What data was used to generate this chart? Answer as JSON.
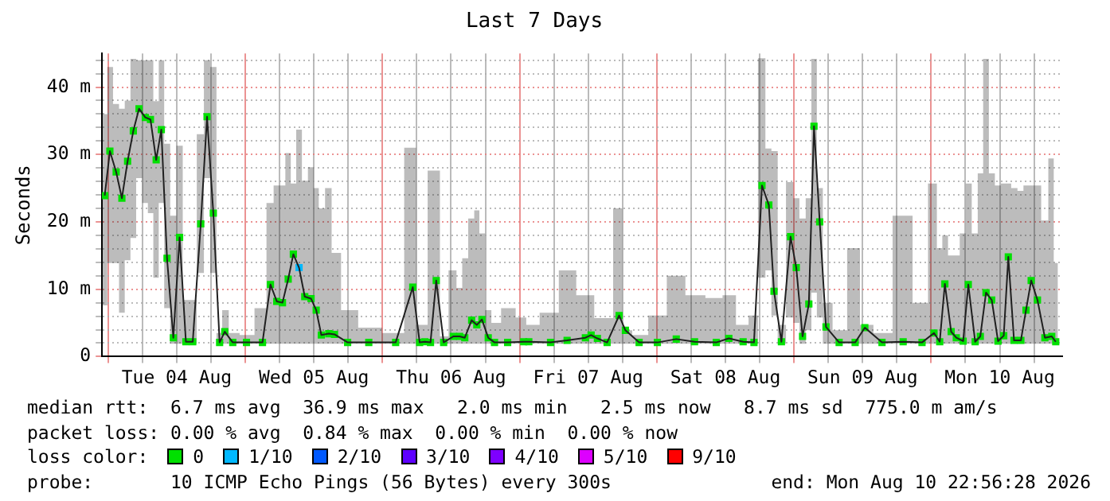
{
  "chart_data": {
    "type": "line",
    "title": "Last 7 Days",
    "ylabel": "Seconds",
    "xlim": [
      "2026-08-03T22:56",
      "2026-08-10T22:56"
    ],
    "xticks": [
      {
        "value": "2026-08-04T00:00",
        "label": null
      },
      {
        "value": "2026-08-04T06:00",
        "label": null
      },
      {
        "value": "2026-08-04T12:00",
        "label": "Tue 04 Aug"
      },
      {
        "value": "2026-08-04T18:00",
        "label": null
      },
      {
        "value": "2026-08-05T00:00",
        "label": null
      },
      {
        "value": "2026-08-05T06:00",
        "label": null
      },
      {
        "value": "2026-08-05T12:00",
        "label": "Wed 05 Aug"
      },
      {
        "value": "2026-08-05T18:00",
        "label": null
      },
      {
        "value": "2026-08-06T00:00",
        "label": null
      },
      {
        "value": "2026-08-06T06:00",
        "label": null
      },
      {
        "value": "2026-08-06T12:00",
        "label": "Thu 06 Aug"
      },
      {
        "value": "2026-08-06T18:00",
        "label": null
      },
      {
        "value": "2026-08-07T00:00",
        "label": null
      },
      {
        "value": "2026-08-07T06:00",
        "label": null
      },
      {
        "value": "2026-08-07T12:00",
        "label": "Fri 07 Aug"
      },
      {
        "value": "2026-08-07T18:00",
        "label": null
      },
      {
        "value": "2026-08-08T00:00",
        "label": null
      },
      {
        "value": "2026-08-08T06:00",
        "label": null
      },
      {
        "value": "2026-08-08T12:00",
        "label": "Sat 08 Aug"
      },
      {
        "value": "2026-08-08T18:00",
        "label": null
      },
      {
        "value": "2026-08-09T00:00",
        "label": null
      },
      {
        "value": "2026-08-09T06:00",
        "label": null
      },
      {
        "value": "2026-08-09T12:00",
        "label": "Sun 09 Aug"
      },
      {
        "value": "2026-08-09T18:00",
        "label": null
      },
      {
        "value": "2026-08-10T00:00",
        "label": null
      },
      {
        "value": "2026-08-10T06:00",
        "label": null
      },
      {
        "value": "2026-08-10T12:00",
        "label": "Mon 10 Aug"
      },
      {
        "value": "2026-08-10T18:00",
        "label": null
      }
    ],
    "ylim": [
      0,
      45
    ],
    "yticks": [
      {
        "value": 0,
        "label": "0"
      },
      {
        "value": 2,
        "label": null
      },
      {
        "value": 4,
        "label": null
      },
      {
        "value": 6,
        "label": null
      },
      {
        "value": 8,
        "label": null
      },
      {
        "value": 10,
        "label": "10 m"
      },
      {
        "value": 12,
        "label": null
      },
      {
        "value": 14,
        "label": null
      },
      {
        "value": 16,
        "label": null
      },
      {
        "value": 18,
        "label": null
      },
      {
        "value": 20,
        "label": "20 m"
      },
      {
        "value": 22,
        "label": null
      },
      {
        "value": 24,
        "label": null
      },
      {
        "value": 26,
        "label": null
      },
      {
        "value": 28,
        "label": null
      },
      {
        "value": 30,
        "label": "30 m"
      },
      {
        "value": 32,
        "label": null
      },
      {
        "value": 34,
        "label": null
      },
      {
        "value": 36,
        "label": null
      },
      {
        "value": 38,
        "label": null
      },
      {
        "value": 40,
        "label": "40 m"
      },
      {
        "value": 42,
        "label": null
      },
      {
        "value": 44,
        "label": null
      }
    ],
    "grid": true,
    "legend": "bottom",
    "legend_title": "loss color:",
    "x": [
      "2026-08-03T23:24",
      "2026-08-04T00:18",
      "2026-08-04T01:24",
      "2026-08-04T02:24",
      "2026-08-04T03:24",
      "2026-08-04T04:24",
      "2026-08-04T05:24",
      "2026-08-04T06:30",
      "2026-08-04T07:24",
      "2026-08-04T08:24",
      "2026-08-04T09:18",
      "2026-08-04T10:18",
      "2026-08-04T11:24",
      "2026-08-04T12:30",
      "2026-08-04T13:36",
      "2026-08-04T14:48",
      "2026-08-04T16:12",
      "2026-08-04T17:18",
      "2026-08-04T18:24",
      "2026-08-04T19:30",
      "2026-08-04T20:24",
      "2026-08-04T21:48",
      "2026-08-05T00:12",
      "2026-08-05T03:00",
      "2026-08-05T04:24",
      "2026-08-05T05:30",
      "2026-08-05T06:30",
      "2026-08-05T07:30",
      "2026-08-05T08:24",
      "2026-08-05T09:24",
      "2026-08-05T10:24",
      "2026-08-05T11:30",
      "2026-08-05T12:24",
      "2026-08-05T13:18",
      "2026-08-05T14:36",
      "2026-08-05T15:36",
      "2026-08-05T17:54",
      "2026-08-05T21:36",
      "2026-08-06T02:18",
      "2026-08-06T05:18",
      "2026-08-06T06:30",
      "2026-08-06T07:24",
      "2026-08-06T08:24",
      "2026-08-06T09:24",
      "2026-08-06T10:42",
      "2026-08-06T12:24",
      "2026-08-06T13:30",
      "2026-08-06T14:24",
      "2026-08-06T15:36",
      "2026-08-06T16:30",
      "2026-08-06T17:24",
      "2026-08-06T18:30",
      "2026-08-06T19:36",
      "2026-08-06T21:54",
      "2026-08-07T00:42",
      "2026-08-07T01:36",
      "2026-08-07T05:24",
      "2026-08-07T08:18",
      "2026-08-07T11:30",
      "2026-08-07T12:30",
      "2026-08-07T13:36",
      "2026-08-07T15:18",
      "2026-08-07T17:24",
      "2026-08-07T18:30",
      "2026-08-07T20:54",
      "2026-08-08T00:06",
      "2026-08-08T03:24",
      "2026-08-08T06:36",
      "2026-08-08T10:24",
      "2026-08-08T12:36",
      "2026-08-08T15:06",
      "2026-08-08T17:00",
      "2026-08-08T18:24",
      "2026-08-08T19:36",
      "2026-08-08T20:30",
      "2026-08-08T21:48",
      "2026-08-08T23:24",
      "2026-08-09T00:24",
      "2026-08-09T01:30",
      "2026-08-09T02:36",
      "2026-08-09T03:30",
      "2026-08-09T04:30",
      "2026-08-09T05:36",
      "2026-08-09T07:54",
      "2026-08-09T10:42",
      "2026-08-09T12:24",
      "2026-08-09T15:24",
      "2026-08-09T19:06",
      "2026-08-09T22:24",
      "2026-08-10T00:30",
      "2026-08-10T01:30",
      "2026-08-10T02:24",
      "2026-08-10T03:30",
      "2026-08-10T04:24",
      "2026-08-10T05:36",
      "2026-08-10T06:30",
      "2026-08-10T07:42",
      "2026-08-10T08:36",
      "2026-08-10T09:36",
      "2026-08-10T10:36",
      "2026-08-10T11:42",
      "2026-08-10T12:42",
      "2026-08-10T13:30",
      "2026-08-10T14:30",
      "2026-08-10T15:42",
      "2026-08-10T16:36",
      "2026-08-10T17:30",
      "2026-08-10T18:36",
      "2026-08-10T19:54",
      "2026-08-10T21:06",
      "2026-08-10T21:48"
    ],
    "series": [
      {
        "color": "#202020",
        "values": [
          23.9,
          30.5,
          27.4,
          23.5,
          29,
          33.5,
          36.8,
          35.5,
          35.2,
          29.2,
          33.7,
          14.6,
          2.8,
          17.7,
          2.2,
          2.2,
          19.7,
          35.6,
          21.3,
          2.1,
          3.7,
          2.1,
          2.1,
          2.1,
          10.7,
          8.2,
          8,
          11.5,
          15.2,
          13.2,
          8.9,
          8.6,
          6.9,
          3.2,
          3.4,
          3.3,
          2.1,
          2.1,
          2.1,
          10.3,
          2.1,
          2.2,
          2.1,
          11.3,
          2.1,
          3,
          3,
          2.8,
          5.4,
          4.7,
          5.5,
          2.8,
          2.1,
          2.1,
          2.2,
          2.2,
          2.1,
          2.4,
          2.8,
          3.2,
          2.7,
          2.1,
          6.1,
          3.9,
          2.1,
          2.1,
          2.6,
          2.2,
          2.1,
          2.7,
          2.2,
          2.1,
          25.4,
          22.5,
          9.7,
          2.2,
          17.8,
          13.2,
          3,
          7.8,
          34.2,
          20,
          4.4,
          2.1,
          2.1,
          4.3,
          2.1,
          2.2,
          2.1,
          3.5,
          2.2,
          10.8,
          3.7,
          2.8,
          2.3,
          10.7,
          2.2,
          3,
          9.5,
          8.4,
          2.3,
          3.1,
          14.8,
          2.4,
          2.4,
          6.9,
          11.3,
          8.4,
          2.8,
          3,
          2.2
        ],
        "lower": [
          7.6,
          13.9,
          13.9,
          6.5,
          14.3,
          17.6,
          26.5,
          22.8,
          21.3,
          11.7,
          22.8,
          7.2,
          1.9,
          1.9,
          1.9,
          1.9,
          12.4,
          26.5,
          12.4,
          1.9,
          1.9,
          1.9,
          1.9,
          1.9,
          1.9,
          1.9,
          1.9,
          1.9,
          1.9,
          1.9,
          1.9,
          1.9,
          1.9,
          1.9,
          1.9,
          1.9,
          1.9,
          1.9,
          1.9,
          1.9,
          1.9,
          1.9,
          1.9,
          1.9,
          1.9,
          1.9,
          1.9,
          1.9,
          1.9,
          1.9,
          1.9,
          1.9,
          1.9,
          1.9,
          1.9,
          1.9,
          1.9,
          1.9,
          1.9,
          1.9,
          1.9,
          1.9,
          1.9,
          1.9,
          1.9,
          1.9,
          1.9,
          1.9,
          1.9,
          1.9,
          1.9,
          1.9,
          11.7,
          12.8,
          6.1,
          1.9,
          5.8,
          5,
          1.9,
          3.9,
          9.5,
          5.8,
          1.9,
          1.9,
          1.9,
          1.9,
          1.9,
          1.9,
          1.9,
          1.9,
          1.9,
          1.9,
          1.9,
          1.9,
          1.9,
          1.9,
          1.9,
          1.9,
          1.9,
          1.9,
          1.9,
          1.9,
          1.9,
          1.9,
          1.9,
          1.9,
          1.9,
          1.9,
          1.9,
          1.9,
          1.9
        ],
        "upper": [
          36,
          43,
          37.5,
          36.8,
          38,
          44.2,
          44,
          44,
          44,
          37.9,
          44,
          31.6,
          20.9,
          31.3,
          8.4,
          8.4,
          33,
          44,
          43,
          3.5,
          6.9,
          3.5,
          3.2,
          7.2,
          22.8,
          25.4,
          25.4,
          30.2,
          25.7,
          33.7,
          26.1,
          28.1,
          25,
          22,
          25,
          15.4,
          6.9,
          4.3,
          3.5,
          31,
          4.7,
          4.7,
          27.6,
          27.6,
          3,
          12.8,
          10.2,
          14.6,
          20.5,
          21.7,
          18.3,
          6.9,
          5,
          7.2,
          5.8,
          4.7,
          6.5,
          12.8,
          9.1,
          9.1,
          5.7,
          5.7,
          22,
          3.9,
          3.2,
          6.1,
          12,
          9.1,
          8.7,
          9.1,
          4.7,
          6.1,
          44.3,
          30.9,
          30.5,
          4.7,
          25.9,
          23.5,
          20.5,
          23.5,
          44.2,
          25,
          8,
          3.9,
          16.1,
          4.7,
          3.5,
          20.9,
          8,
          25.7,
          16.1,
          18,
          15,
          15,
          18.3,
          25.7,
          18.3,
          27.2,
          44.2,
          27.2,
          25.4,
          25.7,
          25.7,
          25,
          24.6,
          25.4,
          25.4,
          25.4,
          20.2,
          29.4,
          13.9
        ]
      },
      {
        "type": "scatter",
        "name": "0",
        "color": "#00e000",
        "marker": "square",
        "values": [
          23.9,
          30.5,
          27.4,
          23.5,
          29,
          33.5,
          36.8,
          35.5,
          35.2,
          29.2,
          33.7,
          14.6,
          2.8,
          17.7,
          2.2,
          2.2,
          19.7,
          35.6,
          21.3,
          2.1,
          3.7,
          2.1,
          2.1,
          2.1,
          10.7,
          8.2,
          8,
          11.5,
          15.2,
          null,
          8.9,
          8.6,
          6.9,
          3.2,
          3.4,
          3.3,
          2.1,
          2.1,
          2.1,
          10.3,
          2.1,
          2.2,
          2.1,
          11.3,
          2.1,
          3,
          3,
          2.8,
          5.4,
          4.7,
          5.5,
          2.8,
          2.1,
          2.1,
          2.2,
          2.2,
          2.1,
          2.4,
          2.8,
          3.2,
          2.7,
          2.1,
          6.1,
          3.9,
          2.1,
          2.1,
          2.6,
          2.2,
          2.1,
          2.7,
          2.2,
          2.1,
          25.4,
          22.5,
          9.7,
          2.2,
          17.8,
          13.2,
          3,
          7.8,
          34.2,
          20,
          4.4,
          2.1,
          2.1,
          4.3,
          2.1,
          2.2,
          2.1,
          3.5,
          2.2,
          10.8,
          3.7,
          2.8,
          2.3,
          10.7,
          2.2,
          3,
          9.5,
          8.4,
          2.3,
          3.1,
          14.8,
          2.4,
          2.4,
          6.9,
          11.3,
          8.4,
          2.8,
          3,
          2.2
        ]
      },
      {
        "type": "scatter",
        "name": "1/10",
        "color": "#00b8ff",
        "marker": "square",
        "x": [
          "2026-08-05T09:24"
        ],
        "values": [
          13.2
        ]
      },
      {
        "type": "scatter",
        "name": "2/10",
        "color": "#0059ff",
        "marker": "square",
        "values": [
          null,
          null,
          null,
          null,
          null,
          null,
          null,
          null,
          null,
          null,
          null,
          null,
          null,
          null,
          null,
          null,
          null,
          null,
          null,
          null,
          null,
          null,
          null,
          null,
          null,
          null,
          null,
          null,
          null,
          null,
          null,
          null,
          null,
          null,
          null,
          null,
          null,
          null,
          null,
          null,
          null,
          null,
          null,
          null,
          null,
          null,
          null,
          null,
          null,
          null,
          null,
          null,
          null,
          null,
          null,
          null,
          null,
          null,
          null,
          null,
          null,
          null,
          null,
          null,
          null,
          null,
          null,
          null,
          null,
          null,
          null,
          null,
          null,
          null,
          null,
          null,
          null,
          null,
          null,
          null,
          null,
          null,
          null,
          null,
          null,
          null,
          null,
          null,
          null,
          null,
          null,
          null,
          null,
          null,
          null,
          null,
          null,
          null,
          null,
          null,
          null,
          null,
          null,
          null,
          null,
          null,
          null,
          null,
          null,
          null,
          null
        ]
      },
      {
        "type": "scatter",
        "name": "3/10",
        "color": "#5e00ff",
        "marker": "square",
        "values": [
          null,
          null,
          null,
          null,
          null,
          null,
          null,
          null,
          null,
          null,
          null,
          null,
          null,
          null,
          null,
          null,
          null,
          null,
          null,
          null,
          null,
          null,
          null,
          null,
          null,
          null,
          null,
          null,
          null,
          null,
          null,
          null,
          null,
          null,
          null,
          null,
          null,
          null,
          null,
          null,
          null,
          null,
          null,
          null,
          null,
          null,
          null,
          null,
          null,
          null,
          null,
          null,
          null,
          null,
          null,
          null,
          null,
          null,
          null,
          null,
          null,
          null,
          null,
          null,
          null,
          null,
          null,
          null,
          null,
          null,
          null,
          null,
          null,
          null,
          null,
          null,
          null,
          null,
          null,
          null,
          null,
          null,
          null,
          null,
          null,
          null,
          null,
          null,
          null,
          null,
          null,
          null,
          null,
          null,
          null,
          null,
          null,
          null,
          null,
          null,
          null,
          null,
          null,
          null,
          null,
          null,
          null,
          null,
          null,
          null,
          null
        ]
      },
      {
        "type": "scatter",
        "name": "4/10",
        "color": "#7e00ff",
        "marker": "square",
        "values": [
          null,
          null,
          null,
          null,
          null,
          null,
          null,
          null,
          null,
          null,
          null,
          null,
          null,
          null,
          null,
          null,
          null,
          null,
          null,
          null,
          null,
          null,
          null,
          null,
          null,
          null,
          null,
          null,
          null,
          null,
          null,
          null,
          null,
          null,
          null,
          null,
          null,
          null,
          null,
          null,
          null,
          null,
          null,
          null,
          null,
          null,
          null,
          null,
          null,
          null,
          null,
          null,
          null,
          null,
          null,
          null,
          null,
          null,
          null,
          null,
          null,
          null,
          null,
          null,
          null,
          null,
          null,
          null,
          null,
          null,
          null,
          null,
          null,
          null,
          null,
          null,
          null,
          null,
          null,
          null,
          null,
          null,
          null,
          null,
          null,
          null,
          null,
          null,
          null,
          null,
          null,
          null,
          null,
          null,
          null,
          null,
          null,
          null,
          null,
          null,
          null,
          null,
          null,
          null,
          null,
          null,
          null,
          null,
          null,
          null,
          null
        ]
      },
      {
        "type": "scatter",
        "name": "5/10",
        "color": "#dd00ff",
        "marker": "square",
        "values": [
          null,
          null,
          null,
          null,
          null,
          null,
          null,
          null,
          null,
          null,
          null,
          null,
          null,
          null,
          null,
          null,
          null,
          null,
          null,
          null,
          null,
          null,
          null,
          null,
          null,
          null,
          null,
          null,
          null,
          null,
          null,
          null,
          null,
          null,
          null,
          null,
          null,
          null,
          null,
          null,
          null,
          null,
          null,
          null,
          null,
          null,
          null,
          null,
          null,
          null,
          null,
          null,
          null,
          null,
          null,
          null,
          null,
          null,
          null,
          null,
          null,
          null,
          null,
          null,
          null,
          null,
          null,
          null,
          null,
          null,
          null,
          null,
          null,
          null,
          null,
          null,
          null,
          null,
          null,
          null,
          null,
          null,
          null,
          null,
          null,
          null,
          null,
          null,
          null,
          null,
          null,
          null,
          null,
          null,
          null,
          null,
          null,
          null,
          null,
          null,
          null,
          null,
          null,
          null,
          null,
          null,
          null,
          null,
          null,
          null,
          null
        ]
      },
      {
        "type": "scatter",
        "name": "9/10",
        "color": "#ff0000",
        "marker": "square",
        "values": [
          null,
          null,
          null,
          null,
          null,
          null,
          null,
          null,
          null,
          null,
          null,
          null,
          null,
          null,
          null,
          null,
          null,
          null,
          null,
          null,
          null,
          null,
          null,
          null,
          null,
          null,
          null,
          null,
          null,
          null,
          null,
          null,
          null,
          null,
          null,
          null,
          null,
          null,
          null,
          null,
          null,
          null,
          null,
          null,
          null,
          null,
          null,
          null,
          null,
          null,
          null,
          null,
          null,
          null,
          null,
          null,
          null,
          null,
          null,
          null,
          null,
          null,
          null,
          null,
          null,
          null,
          null,
          null,
          null,
          null,
          null,
          null,
          null,
          null,
          null,
          null,
          null,
          null,
          null,
          null,
          null,
          null,
          null,
          null,
          null,
          null,
          null,
          null,
          null,
          null,
          null,
          null,
          null,
          null,
          null,
          null,
          null,
          null,
          null,
          null,
          null,
          null,
          null,
          null,
          null,
          null,
          null,
          null,
          null,
          null,
          null
        ]
      }
    ],
    "annotations": [
      "median rtt:  6.7 ms avg  36.9 ms max   2.0 ms min   2.5 ms now   8.7 ms sd  775.0 m am/s",
      "packet loss: 0.00 % avg  0.84 % max  0.00 % min  0.00 % now",
      "probe:       10 ICMP Echo Pings (56 Bytes) every 300s",
      "end: Mon Aug 10 22:56:28 2026"
    ]
  }
}
